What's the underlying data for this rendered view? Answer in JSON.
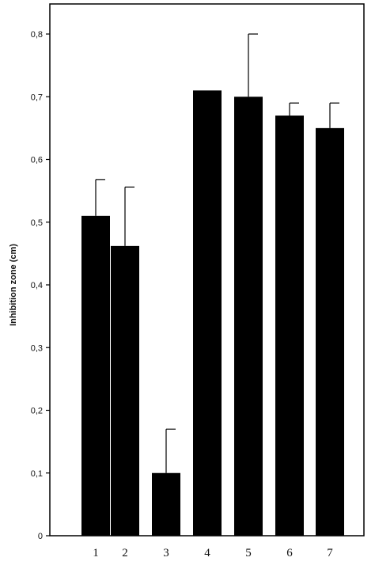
{
  "chart_data": {
    "type": "bar",
    "title": "",
    "xlabel": "",
    "ylabel": "Inhibition zone (cm)",
    "categories": [
      "1",
      "2",
      "3",
      "4",
      "5",
      "6",
      "7"
    ],
    "values": [
      0.51,
      0.462,
      0.1,
      0.71,
      0.7,
      0.67,
      0.65
    ],
    "error_upper": [
      0.568,
      0.556,
      0.17,
      0.71,
      0.8,
      0.69,
      0.69
    ],
    "ylim": [
      0,
      0.8
    ],
    "yticks": [
      0,
      0.1,
      0.2,
      0.3,
      0.4,
      0.5,
      0.6,
      0.7,
      0.8
    ],
    "ytick_labels": [
      "0",
      "0,1",
      "0,2",
      "0,3",
      "0,4",
      "0,5",
      "0,6",
      "0,7",
      "0,8"
    ],
    "grid": false,
    "bar_color": "#000000"
  }
}
